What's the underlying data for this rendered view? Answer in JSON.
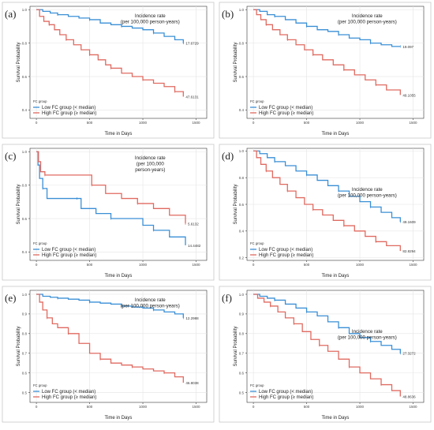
{
  "chart_data": [
    {
      "type": "line",
      "label": "(a)",
      "xlabel": "Time in Days",
      "ylabel": "Survival Probability",
      "xlim": [
        -60,
        1600
      ],
      "ylim": [
        0.35,
        1.02
      ],
      "xticks": [
        0,
        500,
        1000,
        1500
      ],
      "yticks": [
        0.4,
        0.6,
        0.8,
        1.0
      ],
      "legend_title": "FC group",
      "legend_position": "bottom-left",
      "annotation": [
        "Incidence rate",
        "(per 100,000 person-years)"
      ],
      "annotation_position": "upper-right",
      "series": [
        {
          "name": "Low FC group (< median)",
          "color": "#3a8fd6",
          "end_label": "17.6729",
          "x": [
            0,
            60,
            130,
            200,
            300,
            400,
            500,
            600,
            700,
            800,
            900,
            1000,
            1100,
            1200,
            1300,
            1380
          ],
          "y": [
            1.0,
            0.99,
            0.98,
            0.97,
            0.96,
            0.95,
            0.94,
            0.92,
            0.91,
            0.9,
            0.89,
            0.88,
            0.86,
            0.84,
            0.82,
            0.8
          ]
        },
        {
          "name": "High FC group (≥ median)",
          "color": "#e06a60",
          "end_label": "47.6131",
          "x": [
            0,
            30,
            70,
            120,
            170,
            220,
            280,
            350,
            420,
            500,
            580,
            650,
            700,
            800,
            900,
            1000,
            1100,
            1200,
            1300,
            1380
          ],
          "y": [
            1.0,
            0.96,
            0.93,
            0.91,
            0.88,
            0.85,
            0.82,
            0.79,
            0.76,
            0.73,
            0.7,
            0.67,
            0.65,
            0.62,
            0.6,
            0.58,
            0.56,
            0.54,
            0.51,
            0.48
          ]
        }
      ]
    },
    {
      "type": "line",
      "label": "(b)",
      "xlabel": "Time in Days",
      "ylabel": "Survival Probability",
      "xlim": [
        -60,
        1600
      ],
      "ylim": [
        0.35,
        1.02
      ],
      "xticks": [
        0,
        500,
        1000,
        1500
      ],
      "yticks": [
        0.4,
        0.6,
        0.8,
        1.0
      ],
      "legend_title": "FC group",
      "legend_position": "bottom-left",
      "annotation": [
        "Incidence rate",
        "(per 100,000 person-years)"
      ],
      "annotation_position": "upper-right",
      "series": [
        {
          "name": "Low FC group (< median)",
          "color": "#3a8fd6",
          "end_label": "19.097",
          "x": [
            0,
            60,
            130,
            200,
            300,
            400,
            500,
            600,
            700,
            800,
            900,
            1000,
            1100,
            1200,
            1300,
            1380
          ],
          "y": [
            1.0,
            0.99,
            0.97,
            0.96,
            0.94,
            0.92,
            0.9,
            0.88,
            0.87,
            0.85,
            0.83,
            0.82,
            0.8,
            0.79,
            0.78,
            0.78
          ]
        },
        {
          "name": "High FC group (≥ median)",
          "color": "#e06a60",
          "end_label": "49.1055",
          "x": [
            0,
            30,
            70,
            120,
            180,
            250,
            320,
            400,
            480,
            560,
            650,
            750,
            850,
            950,
            1050,
            1150,
            1250,
            1380
          ],
          "y": [
            1.0,
            0.97,
            0.94,
            0.91,
            0.88,
            0.85,
            0.82,
            0.79,
            0.76,
            0.73,
            0.7,
            0.67,
            0.64,
            0.61,
            0.58,
            0.55,
            0.52,
            0.49
          ]
        }
      ]
    },
    {
      "type": "line",
      "label": "(c)",
      "xlabel": "Time in Days",
      "ylabel": "Survival Probability",
      "xlim": [
        -60,
        1600
      ],
      "ylim": [
        0.35,
        1.02
      ],
      "xticks": [
        0,
        500,
        1000,
        1500
      ],
      "yticks": [
        0.4,
        0.6,
        0.8,
        1.0
      ],
      "legend_title": "FC group",
      "legend_position": "bottom-left",
      "annotation": [
        "Incidence rate",
        "(per 100,000",
        "person-years)"
      ],
      "annotation_position": "upper-right",
      "series": [
        {
          "name": "Low FC group (< median)",
          "color": "#3a8fd6",
          "end_label": "14.4482",
          "x": [
            0,
            15,
            30,
            60,
            100,
            200,
            380,
            420,
            560,
            700,
            850,
            1000,
            1100,
            1250,
            1400
          ],
          "y": [
            1.0,
            0.92,
            0.84,
            0.78,
            0.72,
            0.72,
            0.72,
            0.66,
            0.63,
            0.6,
            0.6,
            0.56,
            0.53,
            0.49,
            0.44
          ]
        },
        {
          "name": "High FC group (≥ median)",
          "color": "#e06a60",
          "end_label": "5.6132",
          "x": [
            0,
            20,
            40,
            80,
            250,
            460,
            520,
            650,
            800,
            950,
            1100,
            1250,
            1400
          ],
          "y": [
            1.0,
            0.94,
            0.88,
            0.86,
            0.86,
            0.86,
            0.8,
            0.75,
            0.72,
            0.69,
            0.66,
            0.62,
            0.57
          ]
        }
      ]
    },
    {
      "type": "line",
      "label": "(d)",
      "xlabel": "Time in Days",
      "ylabel": "Survival Probability",
      "xlim": [
        -60,
        1600
      ],
      "ylim": [
        0.18,
        1.02
      ],
      "xticks": [
        0,
        500,
        1000,
        1500
      ],
      "yticks": [
        0.2,
        0.4,
        0.6,
        0.8,
        1.0
      ],
      "legend_title": "FC group",
      "legend_position": "bottom-left",
      "annotation": [
        "Incidence rate",
        "(per 100,000 person-years)"
      ],
      "annotation_position": "right",
      "series": [
        {
          "name": "Low FC group (< median)",
          "color": "#3a8fd6",
          "end_label": "49.1609",
          "x": [
            0,
            60,
            130,
            200,
            300,
            400,
            500,
            600,
            700,
            800,
            900,
            1000,
            1100,
            1200,
            1300,
            1380
          ],
          "y": [
            1.0,
            0.98,
            0.95,
            0.92,
            0.89,
            0.85,
            0.82,
            0.78,
            0.74,
            0.7,
            0.66,
            0.62,
            0.58,
            0.54,
            0.5,
            0.47
          ]
        },
        {
          "name": "High FC group (≥ median)",
          "color": "#e06a60",
          "end_label": "82.8294",
          "x": [
            0,
            30,
            70,
            120,
            180,
            250,
            320,
            400,
            480,
            560,
            650,
            750,
            850,
            950,
            1050,
            1150,
            1250,
            1380
          ],
          "y": [
            1.0,
            0.95,
            0.9,
            0.85,
            0.8,
            0.75,
            0.7,
            0.65,
            0.6,
            0.56,
            0.52,
            0.48,
            0.44,
            0.4,
            0.36,
            0.32,
            0.29,
            0.25
          ]
        }
      ]
    },
    {
      "type": "line",
      "label": "(e)",
      "xlabel": "Time in Days",
      "ylabel": "Survival Probability",
      "xlim": [
        -60,
        1600
      ],
      "ylim": [
        0.45,
        1.02
      ],
      "xticks": [
        0,
        500,
        1000,
        1500
      ],
      "yticks": [
        0.5,
        0.6,
        0.7,
        0.8,
        0.9,
        1.0
      ],
      "legend_title": "FC group",
      "legend_position": "bottom-left",
      "annotation": [
        "Incidence rate",
        "(per 100,000 person-years)"
      ],
      "annotation_position": "upper-right",
      "series": [
        {
          "name": "Low FC group (< median)",
          "color": "#3a8fd6",
          "end_label": "12.2988",
          "x": [
            0,
            60,
            130,
            200,
            300,
            400,
            500,
            600,
            700,
            800,
            900,
            1000,
            1100,
            1200,
            1300,
            1380
          ],
          "y": [
            1.0,
            0.99,
            0.985,
            0.98,
            0.975,
            0.97,
            0.96,
            0.955,
            0.95,
            0.94,
            0.935,
            0.93,
            0.92,
            0.91,
            0.9,
            0.88
          ]
        },
        {
          "name": "High FC group (≥ median)",
          "color": "#e06a60",
          "end_label": "46.8038",
          "x": [
            0,
            30,
            60,
            100,
            150,
            200,
            300,
            400,
            500,
            600,
            700,
            800,
            900,
            1000,
            1100,
            1200,
            1300,
            1380
          ],
          "y": [
            1.0,
            0.96,
            0.92,
            0.88,
            0.85,
            0.83,
            0.8,
            0.75,
            0.7,
            0.67,
            0.65,
            0.64,
            0.63,
            0.62,
            0.61,
            0.6,
            0.58,
            0.55
          ]
        }
      ]
    },
    {
      "type": "line",
      "label": "(f)",
      "xlabel": "Time in Days",
      "ylabel": "Survival Probability",
      "xlim": [
        -60,
        1600
      ],
      "ylim": [
        0.45,
        1.02
      ],
      "xticks": [
        0,
        500,
        1000,
        1500
      ],
      "yticks": [
        0.5,
        0.6,
        0.7,
        0.8,
        0.9,
        1.0
      ],
      "legend_title": "FC group",
      "legend_position": "bottom-left",
      "annotation": [
        "Incidence rate",
        "(per 100,000 person-years)"
      ],
      "annotation_position": "right",
      "series": [
        {
          "name": "Low FC group (< median)",
          "color": "#3a8fd6",
          "end_label": "27.3272",
          "x": [
            0,
            60,
            130,
            200,
            300,
            400,
            500,
            600,
            700,
            800,
            900,
            1000,
            1100,
            1200,
            1300,
            1380
          ],
          "y": [
            1.0,
            0.99,
            0.98,
            0.97,
            0.95,
            0.93,
            0.91,
            0.89,
            0.86,
            0.83,
            0.8,
            0.78,
            0.76,
            0.74,
            0.72,
            0.7
          ]
        },
        {
          "name": "High FC group (≥ median)",
          "color": "#e06a60",
          "end_label": "48.8636",
          "x": [
            0,
            40,
            100,
            160,
            230,
            300,
            380,
            460,
            540,
            620,
            700,
            800,
            900,
            1000,
            1100,
            1200,
            1300,
            1380
          ],
          "y": [
            1.0,
            0.98,
            0.96,
            0.94,
            0.91,
            0.88,
            0.85,
            0.81,
            0.77,
            0.74,
            0.71,
            0.67,
            0.63,
            0.6,
            0.57,
            0.54,
            0.51,
            0.48
          ]
        }
      ]
    }
  ]
}
